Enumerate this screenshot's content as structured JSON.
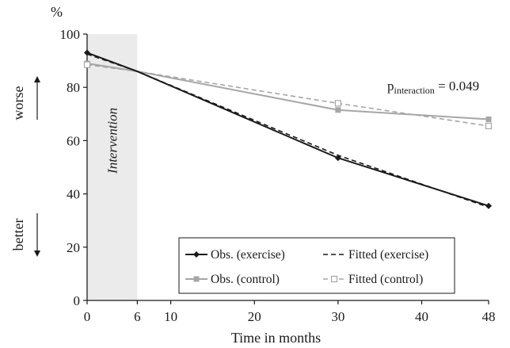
{
  "chart_data": {
    "type": "line",
    "ylabel": "%",
    "xlabel": "Time in months",
    "xlim": [
      0,
      48
    ],
    "ylim": [
      0,
      100
    ],
    "xticks": [
      0,
      6,
      10,
      20,
      30,
      40,
      48
    ],
    "yticks": [
      0,
      20,
      40,
      60,
      80,
      100
    ],
    "shaded_region": {
      "x": [
        0,
        6
      ],
      "label": "Intervention",
      "color": "#ebebeb"
    },
    "series": [
      {
        "name": "Obs. (exercise)",
        "style": "solid",
        "marker": "filled-diamond",
        "color": "#1a1a1a",
        "x": [
          0,
          6,
          30,
          48
        ],
        "y": [
          93,
          86,
          53.5,
          35.5
        ]
      },
      {
        "name": "Fitted (exercise)",
        "style": "dashed",
        "marker": "none",
        "color": "#1a1a1a",
        "x": [
          0,
          6,
          30,
          48
        ],
        "y": [
          92.5,
          86,
          54.5,
          35
        ]
      },
      {
        "name": "Obs. (control)",
        "style": "solid",
        "marker": "filled-square",
        "color": "#a6a6a6",
        "x": [
          0,
          6,
          30,
          48
        ],
        "y": [
          89,
          86,
          71.5,
          68
        ]
      },
      {
        "name": "Fitted (control)",
        "style": "dashed",
        "marker": "open-square",
        "color": "#a6a6a6",
        "x": [
          0,
          6,
          30,
          48
        ],
        "y": [
          88.5,
          86,
          74,
          65.5
        ]
      }
    ],
    "annotations": {
      "p_prefix": "p",
      "p_subscript": "interaction",
      "p_value": " = 0.049",
      "worse": "worse",
      "better": "better"
    },
    "legend_position": "bottom-right",
    "grid": false
  }
}
